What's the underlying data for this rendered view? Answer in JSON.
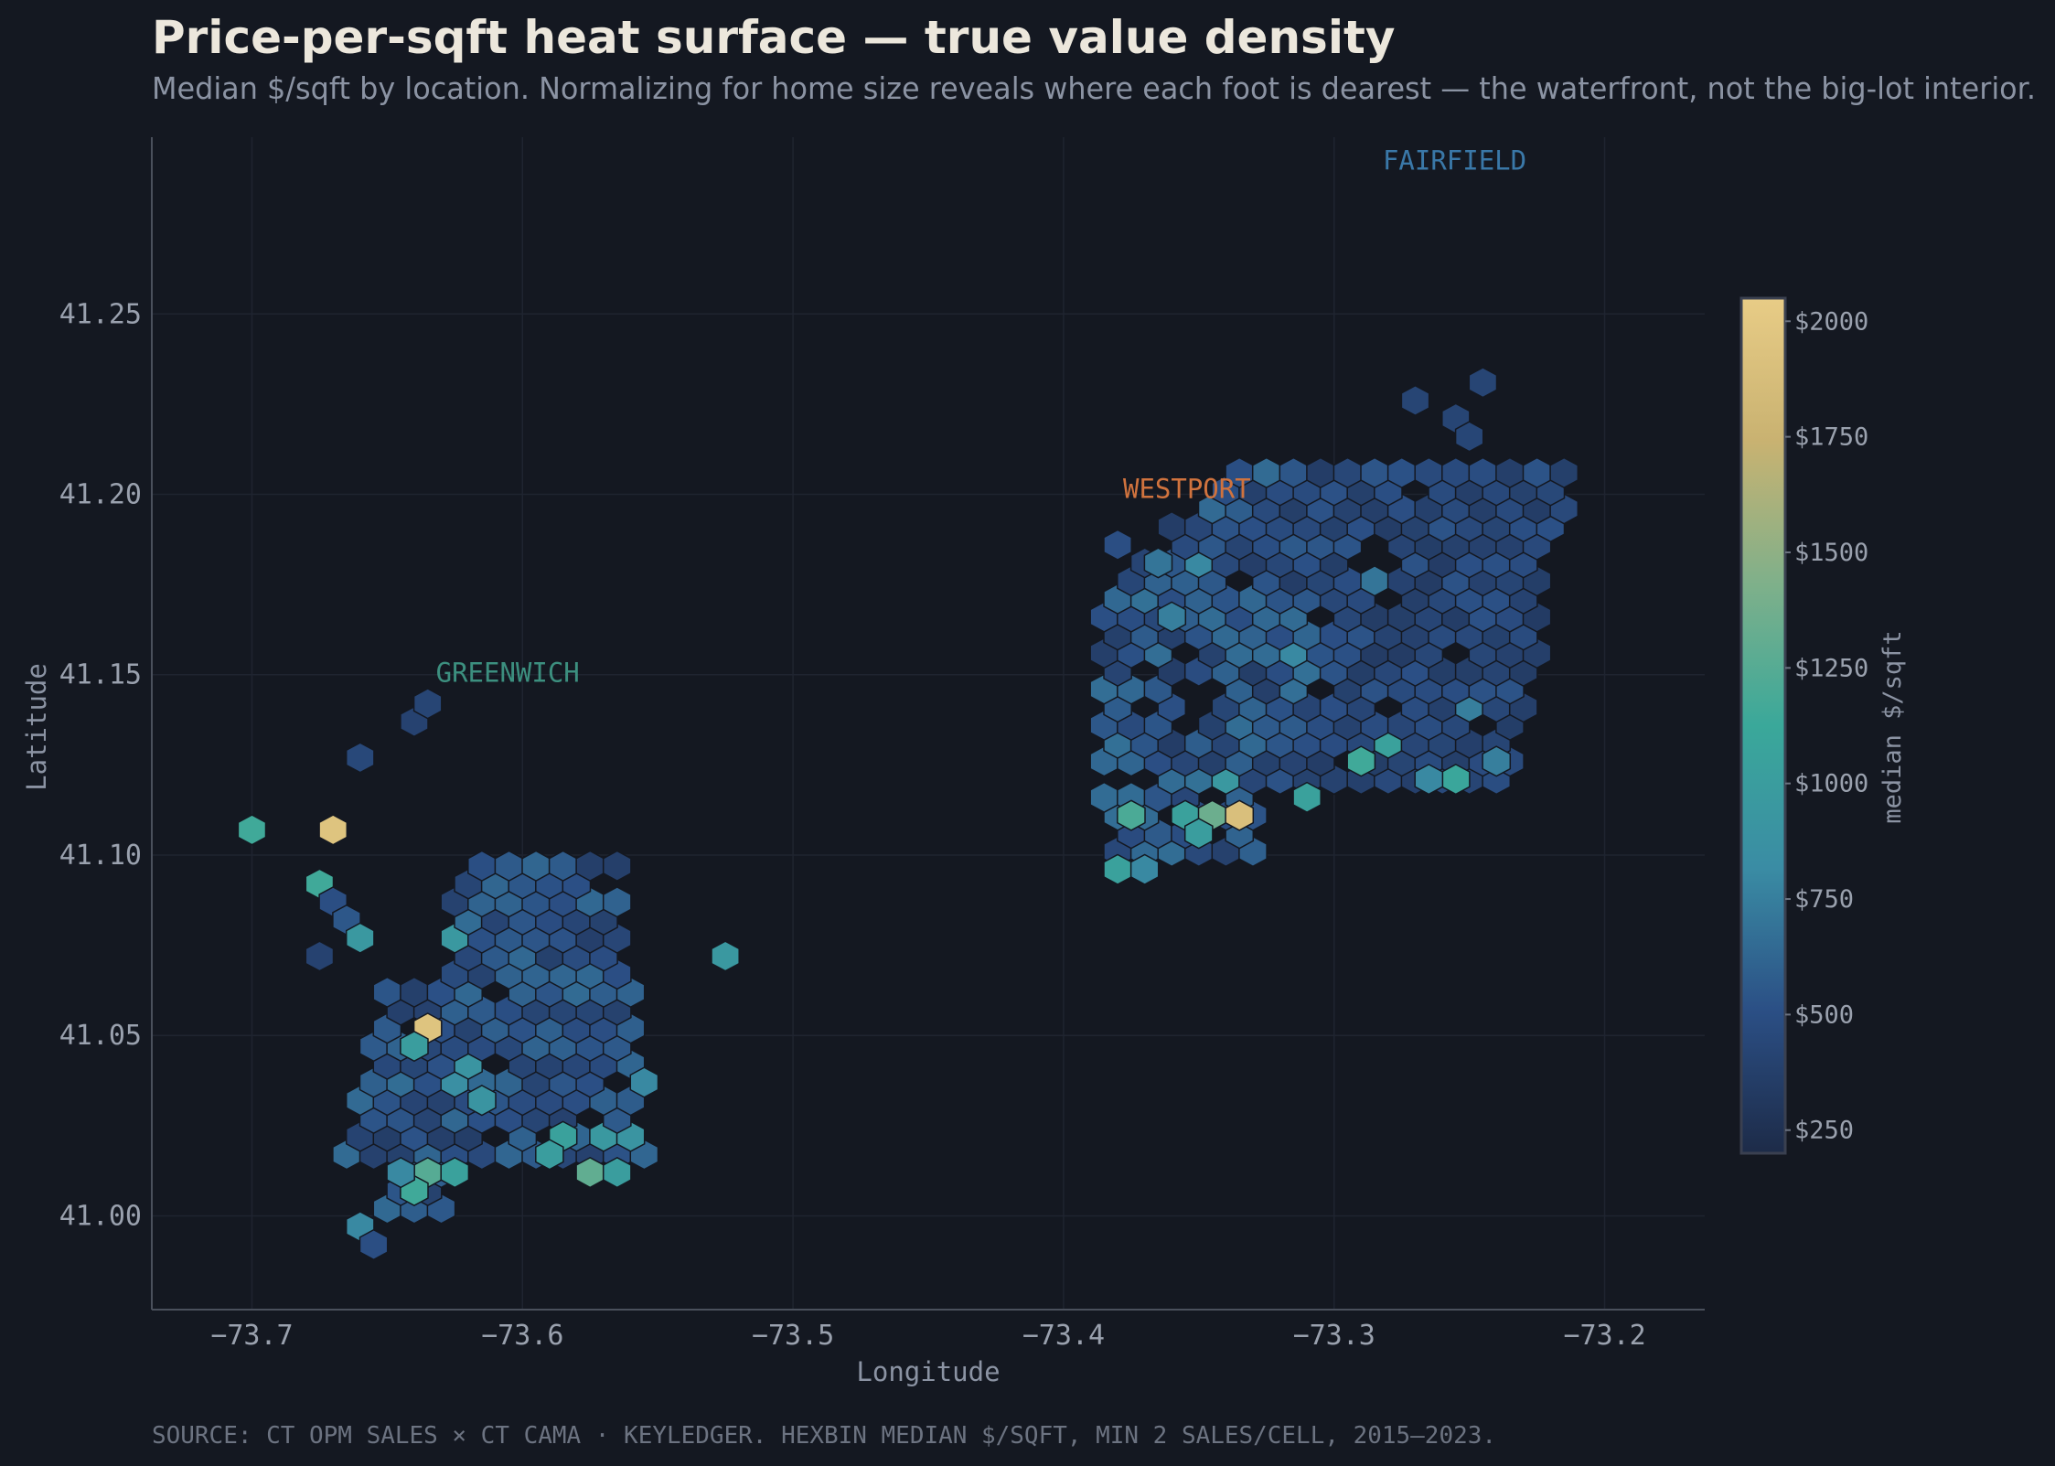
{
  "header": {
    "title": "Price-per-sqft heat surface — true value density",
    "subtitle": "Median $/sqft by location. Normalizing for home size reveals where each foot is dearest — the waterfront, not the big-lot interior."
  },
  "footer": {
    "source": "SOURCE: CT OPM SALES × CT CAMA · KEYLEDGER. HEXBIN MEDIAN $/SQFT, MIN 2 SALES/CELL, 2015–2023."
  },
  "colors": {
    "background": "#141821",
    "grid": "#1f2430",
    "axis": "#4a505c",
    "greenwich": "#3c8f7f",
    "westport": "#d0733e",
    "fairfield": "#3a78a8"
  },
  "chart_data": {
    "type": "heatmap",
    "subtype": "hexbin",
    "title": "Price-per-sqft heat surface — true value density",
    "xlabel": "Longitude",
    "ylabel": "Latitude",
    "xlim": [
      -73.737,
      -73.163
    ],
    "ylim": [
      40.974,
      41.299
    ],
    "xticks": [
      -73.7,
      -73.6,
      -73.5,
      -73.4,
      -73.3,
      -73.2
    ],
    "xtick_labels": [
      "−73.7",
      "−73.6",
      "−73.5",
      "−73.4",
      "−73.3",
      "−73.2"
    ],
    "yticks": [
      41.0,
      41.05,
      41.1,
      41.15,
      41.2,
      41.25
    ],
    "ytick_labels": [
      "41.00",
      "41.05",
      "41.10",
      "41.15",
      "41.20",
      "41.25"
    ],
    "grid": true,
    "colorbar": {
      "label": "median $/sqft",
      "range": [
        200,
        2050
      ],
      "ticks": [
        250,
        500,
        750,
        1000,
        1250,
        1500,
        1750,
        2000
      ],
      "tick_labels": [
        "$250",
        "$500",
        "$750",
        "$1000",
        "$1250",
        "$1500",
        "$1750",
        "$2000"
      ],
      "stops": [
        "#1d2b48",
        "#2b4f85",
        "#3a8ca4",
        "#3aa89a",
        "#7fb08a",
        "#c9b271",
        "#e8cc86"
      ]
    },
    "annotations": [
      {
        "text": "GREENWICH",
        "x": -73.632,
        "y": 41.148,
        "color": "#3c8f7f"
      },
      {
        "text": "WESTPORT",
        "x": -73.378,
        "y": 41.199,
        "color": "#d0733e"
      },
      {
        "text": "FAIRFIELD",
        "x": -73.282,
        "y": 41.29,
        "color": "#3a78a8"
      }
    ],
    "hex_dx": 0.01,
    "hex_dy": 0.005,
    "anomalies": [
      {
        "x": -73.7,
        "y": 41.107,
        "v": 1150
      },
      {
        "x": -73.67,
        "y": 41.107,
        "v": 1950
      },
      {
        "x": -73.66,
        "y": 41.127,
        "v": 450
      },
      {
        "x": -73.64,
        "y": 41.137,
        "v": 400
      },
      {
        "x": -73.635,
        "y": 41.142,
        "v": 420
      },
      {
        "x": -73.525,
        "y": 41.072,
        "v": 950
      },
      {
        "x": -73.675,
        "y": 41.092,
        "v": 1150
      },
      {
        "x": -73.67,
        "y": 41.087,
        "v": 500
      },
      {
        "x": -73.665,
        "y": 41.082,
        "v": 550
      },
      {
        "x": -73.66,
        "y": 41.077,
        "v": 950
      },
      {
        "x": -73.675,
        "y": 41.072,
        "v": 400
      },
      {
        "x": -73.635,
        "y": 41.052,
        "v": 1950
      },
      {
        "x": -73.64,
        "y": 41.047,
        "v": 1000
      },
      {
        "x": -73.635,
        "y": 41.012,
        "v": 1250
      },
      {
        "x": -73.64,
        "y": 41.007,
        "v": 1150
      },
      {
        "x": -73.625,
        "y": 41.012,
        "v": 1050
      },
      {
        "x": -73.615,
        "y": 41.032,
        "v": 900
      },
      {
        "x": -73.625,
        "y": 41.037,
        "v": 850
      },
      {
        "x": -73.62,
        "y": 41.042,
        "v": 900
      },
      {
        "x": -73.625,
        "y": 41.077,
        "v": 950
      },
      {
        "x": -73.585,
        "y": 41.022,
        "v": 1050
      },
      {
        "x": -73.59,
        "y": 41.017,
        "v": 1000
      },
      {
        "x": -73.575,
        "y": 41.012,
        "v": 1300
      },
      {
        "x": -73.565,
        "y": 41.012,
        "v": 1000
      },
      {
        "x": -73.57,
        "y": 41.022,
        "v": 950
      },
      {
        "x": -73.56,
        "y": 41.022,
        "v": 900
      },
      {
        "x": -73.66,
        "y": 40.997,
        "v": 800
      },
      {
        "x": -73.655,
        "y": 40.992,
        "v": 500
      },
      {
        "x": -73.645,
        "y": 41.012,
        "v": 800
      },
      {
        "x": -73.555,
        "y": 41.037,
        "v": 800
      },
      {
        "x": -73.375,
        "y": 41.111,
        "v": 1200
      },
      {
        "x": -73.355,
        "y": 41.111,
        "v": 1050
      },
      {
        "x": -73.345,
        "y": 41.111,
        "v": 1350
      },
      {
        "x": -73.335,
        "y": 41.111,
        "v": 1900
      },
      {
        "x": -73.35,
        "y": 41.106,
        "v": 1000
      },
      {
        "x": -73.34,
        "y": 41.121,
        "v": 950
      },
      {
        "x": -73.38,
        "y": 41.096,
        "v": 1050
      },
      {
        "x": -73.37,
        "y": 41.096,
        "v": 800
      },
      {
        "x": -73.31,
        "y": 41.116,
        "v": 1050
      },
      {
        "x": -73.29,
        "y": 41.126,
        "v": 1150
      },
      {
        "x": -73.28,
        "y": 41.131,
        "v": 1050
      },
      {
        "x": -73.255,
        "y": 41.121,
        "v": 1100
      },
      {
        "x": -73.265,
        "y": 41.121,
        "v": 800
      },
      {
        "x": -73.27,
        "y": 41.226,
        "v": 420
      },
      {
        "x": -73.255,
        "y": 41.221,
        "v": 420
      },
      {
        "x": -73.25,
        "y": 41.216,
        "v": 430
      },
      {
        "x": -73.245,
        "y": 41.231,
        "v": 420
      },
      {
        "x": -73.345,
        "y": 41.186,
        "v": 550
      },
      {
        "x": -73.35,
        "y": 41.181,
        "v": 800
      },
      {
        "x": -73.365,
        "y": 41.181,
        "v": 700
      },
      {
        "x": -73.38,
        "y": 41.186,
        "v": 500
      },
      {
        "x": -73.36,
        "y": 41.166,
        "v": 750
      },
      {
        "x": -73.315,
        "y": 41.156,
        "v": 800
      },
      {
        "x": -73.285,
        "y": 41.176,
        "v": 700
      },
      {
        "x": -73.24,
        "y": 41.126,
        "v": 750
      },
      {
        "x": -73.25,
        "y": 41.141,
        "v": 750
      }
    ]
  }
}
